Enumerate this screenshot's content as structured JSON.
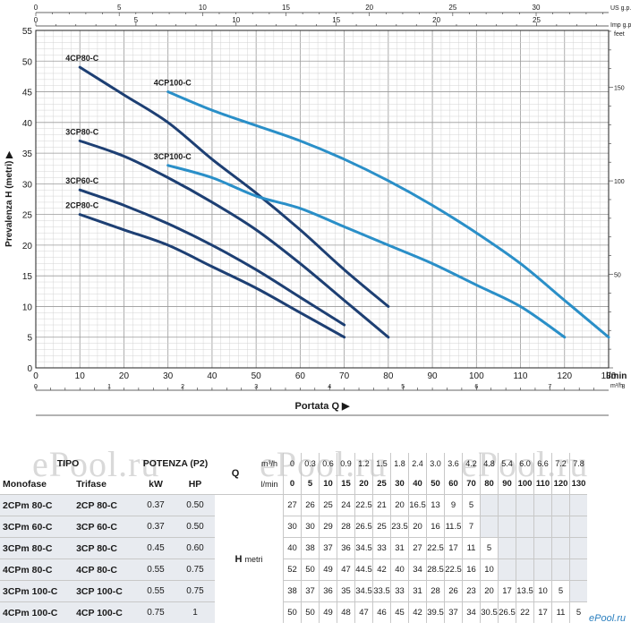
{
  "chart_data": {
    "type": "line",
    "ylabel": "Prevalenza H (metri)",
    "ylabel_arrow": "▶",
    "xlabel": "Portata Q",
    "xlabel_arrow": "▶",
    "ylim": [
      0,
      55
    ],
    "xlim": [
      0,
      130
    ],
    "y_ticks": [
      "0",
      "5",
      "10",
      "15",
      "20",
      "25",
      "30",
      "35",
      "40",
      "45",
      "50",
      "55"
    ],
    "x_ticks_lmin": [
      "0",
      "10",
      "20",
      "30",
      "40",
      "50",
      "60",
      "70",
      "80",
      "90",
      "100",
      "110",
      "120",
      "130"
    ],
    "x_unit_lmin": "l/min",
    "x_ticks_m3h": [
      "0",
      "1",
      "2",
      "3",
      "4",
      "5",
      "6",
      "7",
      "8"
    ],
    "x_unit_m3h": "m³/h",
    "top_us_ticks": [
      "0",
      "5",
      "10",
      "15",
      "20",
      "25",
      "30"
    ],
    "top_us_unit": "US g.p.m.",
    "top_imp_ticks": [
      "0",
      "5",
      "10",
      "15",
      "20",
      "25"
    ],
    "top_imp_unit": "Imp g.p.m.",
    "right_feet_ticks": [
      "0",
      "50",
      "100",
      "150"
    ],
    "right_feet_unit": "feet",
    "series": [
      {
        "name": "2CP80-C",
        "color": "#1d3f73",
        "x": [
          10,
          20,
          30,
          40,
          50,
          60,
          70
        ],
        "y": [
          25,
          22.5,
          20,
          16.5,
          13,
          9,
          5
        ]
      },
      {
        "name": "3CP60-C",
        "color": "#1d3f73",
        "x": [
          10,
          20,
          30,
          40,
          50,
          60,
          70
        ],
        "y": [
          29,
          26.5,
          23.5,
          20,
          16,
          11.5,
          7
        ]
      },
      {
        "name": "3CP80-C",
        "color": "#1d3f73",
        "x": [
          10,
          20,
          30,
          40,
          50,
          60,
          70,
          80
        ],
        "y": [
          37,
          34.5,
          31,
          27,
          22.5,
          17,
          11,
          5
        ]
      },
      {
        "name": "4CP80-C",
        "color": "#1d3f73",
        "x": [
          10,
          20,
          30,
          40,
          50,
          60,
          70,
          80
        ],
        "y": [
          49,
          44.5,
          40,
          34,
          28.5,
          22.5,
          16,
          10
        ]
      },
      {
        "name": "3CP100-C",
        "color": "#2a8fc8",
        "x": [
          30,
          40,
          50,
          60,
          70,
          80,
          90,
          100,
          110,
          120
        ],
        "y": [
          33,
          31,
          28,
          26,
          23,
          20,
          17,
          13.5,
          10,
          5
        ]
      },
      {
        "name": "4CP100-C",
        "color": "#2a8fc8",
        "x": [
          30,
          40,
          50,
          60,
          70,
          80,
          90,
          100,
          110,
          120,
          130
        ],
        "y": [
          45,
          42,
          39.5,
          37,
          34,
          30.5,
          26.5,
          22,
          17,
          11,
          5
        ]
      }
    ]
  },
  "watermark": [
    "ePool.ru",
    "ePool.ru",
    "ePool.ru"
  ],
  "logo": "ePool.ru",
  "table": {
    "tipo": "TIPO",
    "monofase": "Monofase",
    "trifase": "Trifase",
    "potenza": "POTENZA (P2)",
    "kw": "kW",
    "hp": "HP",
    "q_label": "Q",
    "q_unit_m3h": "m³/h",
    "q_unit_lmin": "l/min",
    "h_label": "H",
    "h_unit": "metri",
    "m3h_values": [
      "0",
      "0.3",
      "0.6",
      "0.9",
      "1.2",
      "1.5",
      "1.8",
      "2.4",
      "3.0",
      "3.6",
      "4.2",
      "4.8",
      "5.4",
      "6.0",
      "6.6",
      "7.2",
      "7.8"
    ],
    "lmin_values": [
      "0",
      "5",
      "10",
      "15",
      "20",
      "25",
      "30",
      "40",
      "50",
      "60",
      "70",
      "80",
      "90",
      "100",
      "110",
      "120",
      "130"
    ],
    "rows": [
      {
        "mono": "2CPm 80-C",
        "tri": "2CP 80-C",
        "kw": "0.37",
        "hp": "0.50",
        "h": [
          "27",
          "26",
          "25",
          "24",
          "22.5",
          "21",
          "20",
          "16.5",
          "13",
          "9",
          "5",
          "",
          "",
          "",
          "",
          "",
          ""
        ]
      },
      {
        "mono": "3CPm 60-C",
        "tri": "3CP 60-C",
        "kw": "0.37",
        "hp": "0.50",
        "h": [
          "30",
          "30",
          "29",
          "28",
          "26.5",
          "25",
          "23.5",
          "20",
          "16",
          "11.5",
          "7",
          "",
          "",
          "",
          "",
          "",
          ""
        ]
      },
      {
        "mono": "3CPm 80-C",
        "tri": "3CP 80-C",
        "kw": "0.45",
        "hp": "0.60",
        "h": [
          "40",
          "38",
          "37",
          "36",
          "34.5",
          "33",
          "31",
          "27",
          "22.5",
          "17",
          "11",
          "5",
          "",
          "",
          "",
          "",
          ""
        ]
      },
      {
        "mono": "4CPm 80-C",
        "tri": "4CP 80-C",
        "kw": "0.55",
        "hp": "0.75",
        "h": [
          "52",
          "50",
          "49",
          "47",
          "44.5",
          "42",
          "40",
          "34",
          "28.5",
          "22.5",
          "16",
          "10",
          "",
          "",
          "",
          "",
          ""
        ]
      },
      {
        "mono": "3CPm 100-C",
        "tri": "3CP 100-C",
        "kw": "0.55",
        "hp": "0.75",
        "h": [
          "38",
          "37",
          "36",
          "35",
          "34.5",
          "33.5",
          "33",
          "31",
          "28",
          "26",
          "23",
          "20",
          "17",
          "13.5",
          "10",
          "5",
          ""
        ]
      },
      {
        "mono": "4CPm 100-C",
        "tri": "4CP 100-C",
        "kw": "0.75",
        "hp": "1",
        "h": [
          "50",
          "50",
          "49",
          "48",
          "47",
          "46",
          "45",
          "42",
          "39.5",
          "37",
          "34",
          "30.5",
          "26.5",
          "22",
          "17",
          "11",
          "5"
        ]
      }
    ]
  }
}
